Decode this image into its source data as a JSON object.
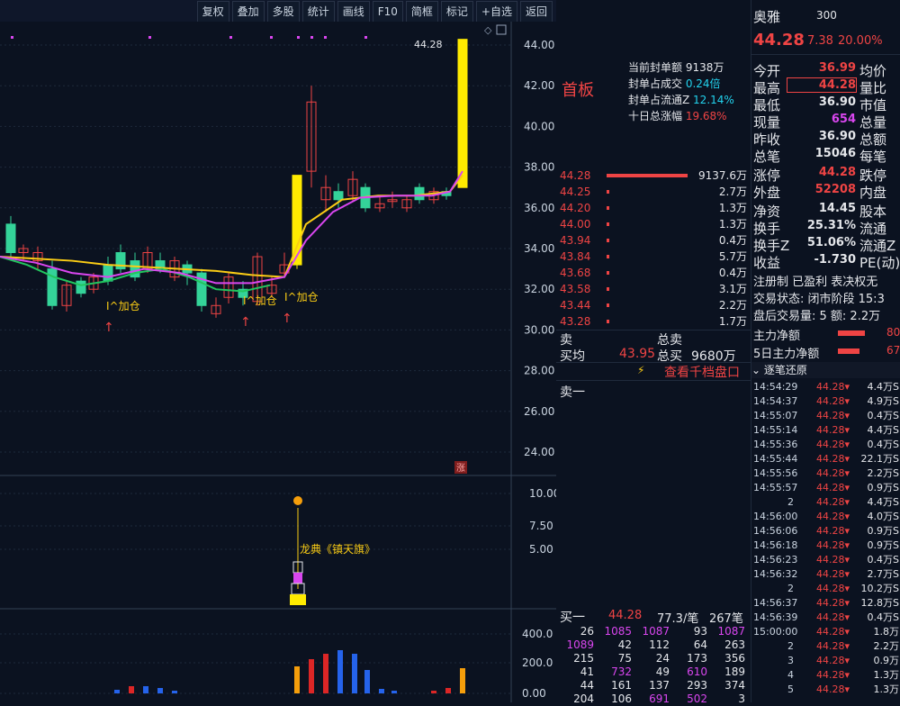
{
  "toolbar": {
    "buttons": [
      "复权",
      "叠加",
      "多股",
      "统计",
      "画线",
      "F10",
      "简框",
      "标记",
      "+自选",
      "返回"
    ]
  },
  "stock": {
    "name_prefix": "奥雅",
    "code_prefix": "300",
    "last_price": "44.28",
    "change": "7.38",
    "change_pct": "20.00%"
  },
  "seal_panel": {
    "tag": "首板",
    "items": [
      {
        "label": "当前封单额",
        "value": "9138万"
      },
      {
        "label": "封单占成交",
        "value": "0.24倍"
      },
      {
        "label": "封单占流通Z",
        "value": "12.14%"
      },
      {
        "label": "十日总涨幅",
        "value": "19.68%"
      }
    ]
  },
  "order_book": {
    "rows": [
      {
        "price": "44.28",
        "vol": "9137.6万",
        "bar": 0.9
      },
      {
        "price": "44.25",
        "vol": "2.7万",
        "bar": 0.02
      },
      {
        "price": "44.20",
        "vol": "1.3万",
        "bar": 0.02
      },
      {
        "price": "44.00",
        "vol": "1.3万",
        "bar": 0.02
      },
      {
        "price": "43.94",
        "vol": "0.4万",
        "bar": 0.02
      },
      {
        "price": "43.84",
        "vol": "5.7万",
        "bar": 0.02
      },
      {
        "price": "43.68",
        "vol": "0.4万",
        "bar": 0.02
      },
      {
        "price": "43.58",
        "vol": "3.1万",
        "bar": 0.02
      },
      {
        "price": "43.44",
        "vol": "2.2万",
        "bar": 0.02
      },
      {
        "price": "43.28",
        "vol": "1.7万",
        "bar": 0.02
      }
    ],
    "summary": {
      "sell_label": "卖",
      "buy_label": "买均",
      "buy_avg": "43.95",
      "total_sell_label": "总卖",
      "total_buy_label": "总买",
      "total_buy": "9680万"
    },
    "link_label": "查看千档盘口",
    "sell1_label": "卖一"
  },
  "buy_one": {
    "label": "买一",
    "price": "44.28",
    "avg": "77.3/笔",
    "count": "267笔"
  },
  "volume_table": {
    "rows": [
      [
        "26",
        "1085",
        "1087",
        "93",
        "1087"
      ],
      [
        "1089",
        "42",
        "112",
        "64",
        "263"
      ],
      [
        "215",
        "75",
        "24",
        "173",
        "356"
      ],
      [
        "41",
        "732",
        "49",
        "610",
        "189"
      ],
      [
        "44",
        "161",
        "137",
        "293",
        "374"
      ],
      [
        "204",
        "106",
        "691",
        "502",
        "3"
      ]
    ]
  },
  "info": {
    "rows": [
      {
        "l": "今开",
        "v": "36.99",
        "r": "均价"
      },
      {
        "l": "最高",
        "v": "44.28",
        "r": "量比"
      },
      {
        "l": "最低",
        "v": "36.90",
        "r": "市值"
      },
      {
        "l": "现量",
        "v": "654",
        "r": "总量"
      },
      {
        "l": "昨收",
        "v": "36.90",
        "r": "总额"
      },
      {
        "l": "总笔",
        "v": "15046",
        "r": "每笔"
      },
      {
        "l": "涨停",
        "v": "44.28",
        "r": "跌停"
      },
      {
        "l": "外盘",
        "v": "52208",
        "r": "内盘"
      },
      {
        "l": "净资",
        "v": "14.45",
        "r": "股本"
      },
      {
        "l": "换手",
        "v": "25.31%",
        "r": "流通"
      },
      {
        "l": "换手Z",
        "v": "51.06%",
        "r": "流通Z"
      },
      {
        "l": "收益",
        "v": "-1.730",
        "r": "PE(动)"
      }
    ],
    "lines": [
      "注册制 已盈利 表决权无",
      "交易状态: 闭市阶段 15:3",
      "盘后交易量: 5  额: 2.2万"
    ],
    "main_net": "主力净额",
    "main_net_val": "80",
    "main5_net": "5日主力净额",
    "main5_val": "67",
    "trade_header": "逐笔还原"
  },
  "trades": [
    {
      "t": "14:54:29",
      "p": "44.28",
      "v": "4.4万S"
    },
    {
      "t": "14:54:37",
      "p": "44.28",
      "v": "4.9万S"
    },
    {
      "t": "14:55:07",
      "p": "44.28",
      "v": "0.4万S"
    },
    {
      "t": "14:55:14",
      "p": "44.28",
      "v": "4.4万S"
    },
    {
      "t": "14:55:36",
      "p": "44.28",
      "v": "0.4万S"
    },
    {
      "t": "14:55:44",
      "p": "44.28",
      "v": "22.1万S"
    },
    {
      "t": "14:55:56",
      "p": "44.28",
      "v": "2.2万S"
    },
    {
      "t": "14:55:57",
      "p": "44.28",
      "v": "0.9万S"
    },
    {
      "t": "2",
      "p": "44.28",
      "v": "4.4万S"
    },
    {
      "t": "14:56:00",
      "p": "44.28",
      "v": "4.0万S"
    },
    {
      "t": "14:56:06",
      "p": "44.28",
      "v": "0.9万S"
    },
    {
      "t": "14:56:18",
      "p": "44.28",
      "v": "0.9万S"
    },
    {
      "t": "14:56:23",
      "p": "44.28",
      "v": "0.4万S"
    },
    {
      "t": "14:56:32",
      "p": "44.28",
      "v": "2.7万S"
    },
    {
      "t": "2",
      "p": "44.28",
      "v": "10.2万S"
    },
    {
      "t": "14:56:37",
      "p": "44.28",
      "v": "12.8万S"
    },
    {
      "t": "14:56:39",
      "p": "44.28",
      "v": "0.4万S"
    },
    {
      "t": "15:00:00",
      "p": "44.28",
      "v": "1.8万"
    },
    {
      "t": "2",
      "p": "44.28",
      "v": "2.2万"
    },
    {
      "t": "3",
      "p": "44.28",
      "v": "0.9万"
    },
    {
      "t": "4",
      "p": "44.28",
      "v": "1.3万"
    },
    {
      "t": "5",
      "p": "44.28",
      "v": "1.3万"
    }
  ],
  "chart_data": {
    "type": "line",
    "top_right_label": "44.28",
    "y_ticks": [
      "44.00",
      "42.00",
      "40.00",
      "38.00",
      "36.00",
      "34.00",
      "32.00",
      "30.00",
      "28.00",
      "26.00",
      "24.00"
    ],
    "annotations": [
      "I^加仓",
      "I^加仓",
      "I^加仓"
    ],
    "ind_ticks": [
      "10.00",
      "7.50",
      "5.00"
    ],
    "ind_label": "龙典《镇天旗》",
    "vol_ticks": [
      "400.0",
      "200.0",
      "0.00"
    ],
    "limit_up_mark": "涨"
  }
}
